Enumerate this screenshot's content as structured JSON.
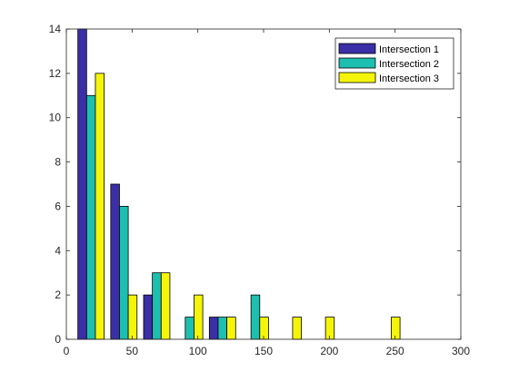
{
  "chart_data": {
    "type": "bar",
    "title": "",
    "xlabel": "",
    "ylabel": "",
    "xlim": [
      0,
      300
    ],
    "ylim": [
      0,
      14
    ],
    "x_ticks": [
      0,
      50,
      100,
      150,
      200,
      250,
      300
    ],
    "y_ticks": [
      0,
      2,
      4,
      6,
      8,
      10,
      12,
      14
    ],
    "x": [
      18.75,
      43.75,
      68.75,
      93.75,
      118.75,
      143.75,
      168.75,
      193.75,
      218.75,
      243.75
    ],
    "series": [
      {
        "name": "Intersection 1",
        "color": "#3a2fa6",
        "values": [
          14,
          7,
          2,
          0,
          1,
          0,
          0,
          0,
          0,
          0
        ]
      },
      {
        "name": "Intersection 2",
        "color": "#1cbfb0",
        "values": [
          11,
          6,
          3,
          1,
          1,
          2,
          0,
          0,
          0,
          0
        ]
      },
      {
        "name": "Intersection 3",
        "color": "#f5f50a",
        "values": [
          12,
          2,
          3,
          2,
          1,
          1,
          1,
          1,
          0,
          1
        ]
      }
    ],
    "legend_position": "top-right",
    "grid": false
  }
}
